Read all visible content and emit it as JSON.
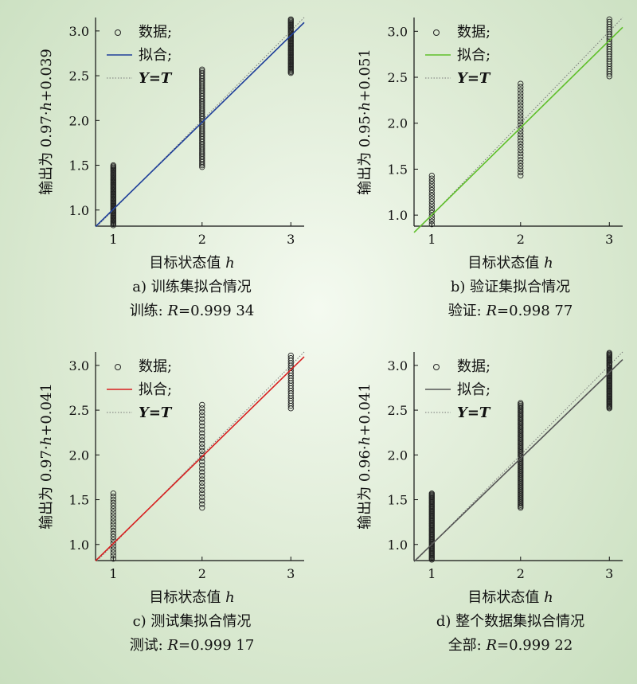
{
  "chart_data": [
    {
      "id": "a",
      "type": "scatter",
      "xlabel": "目标状态值 h",
      "ylabel": "输出为 0.97·h+0.039",
      "caption": "a) 训练集拟合情况",
      "r_text": "训练: R=0.999 34",
      "xlim": [
        0.8,
        3.15
      ],
      "ylim": [
        0.82,
        3.15
      ],
      "xticks": [
        1,
        2,
        3
      ],
      "yticks": [
        1.0,
        1.5,
        2.0,
        2.5,
        3.0
      ],
      "ytick_labels": [
        "1.0",
        "1.5",
        "2.0",
        "2.5",
        "3.0"
      ],
      "fit": {
        "slope": 0.97,
        "intercept": 0.039,
        "color": "#1f3f9a"
      },
      "legend": {
        "data": "数据;",
        "fit": "拟合;",
        "identity": "Y=T",
        "position": "top-left"
      },
      "groups": [
        {
          "x": 1,
          "min": 0.83,
          "max": 1.5,
          "count": 56
        },
        {
          "x": 2,
          "min": 1.48,
          "max": 2.57,
          "count": 60
        },
        {
          "x": 3,
          "min": 2.53,
          "max": 3.13,
          "count": 50
        }
      ]
    },
    {
      "id": "b",
      "type": "scatter",
      "xlabel": "目标状态值 h",
      "ylabel": "输出为 0.95·h+0.051",
      "caption": "b) 验证集拟合情况",
      "r_text": "验证: R=0.998 77",
      "xlim": [
        0.8,
        3.15
      ],
      "ylim": [
        0.88,
        3.15
      ],
      "xticks": [
        1,
        2,
        3
      ],
      "yticks": [
        1.0,
        1.5,
        2.0,
        2.5,
        3.0
      ],
      "ytick_labels": [
        "1.0",
        "1.5",
        "2.0",
        "2.5",
        "3.0"
      ],
      "fit": {
        "slope": 0.95,
        "intercept": 0.051,
        "color": "#5fbf2a"
      },
      "legend": {
        "data": "数据;",
        "fit": "拟合;",
        "identity": "Y=T",
        "position": "top-left"
      },
      "groups": [
        {
          "x": 1,
          "min": 0.9,
          "max": 1.43,
          "count": 18
        },
        {
          "x": 2,
          "min": 1.43,
          "max": 2.43,
          "count": 30
        },
        {
          "x": 3,
          "min": 2.51,
          "max": 3.13,
          "count": 24
        }
      ]
    },
    {
      "id": "c",
      "type": "scatter",
      "xlabel": "目标状态值 h",
      "ylabel": "输出为 0.97·h+0.041",
      "caption": "c) 测试集拟合情况",
      "r_text": "测试: R=0.999 17",
      "xlim": [
        0.8,
        3.15
      ],
      "ylim": [
        0.82,
        3.15
      ],
      "xticks": [
        1,
        2,
        3
      ],
      "yticks": [
        1.0,
        1.5,
        2.0,
        2.5,
        3.0
      ],
      "ytick_labels": [
        "1.0",
        "1.5",
        "2.0",
        "2.5",
        "3.0"
      ],
      "fit": {
        "slope": 0.97,
        "intercept": 0.041,
        "color": "#d81f1f"
      },
      "legend": {
        "data": "数据;",
        "fit": "拟合;",
        "identity": "Y=T",
        "position": "top-left"
      },
      "groups": [
        {
          "x": 1,
          "min": 0.84,
          "max": 1.57,
          "count": 22
        },
        {
          "x": 2,
          "min": 1.41,
          "max": 2.56,
          "count": 30
        },
        {
          "x": 3,
          "min": 2.52,
          "max": 3.11,
          "count": 22
        }
      ]
    },
    {
      "id": "d",
      "type": "scatter",
      "xlabel": "目标状态值 h",
      "ylabel": "输出为 0.96·h+0.041",
      "caption": "d) 整个数据集拟合情况",
      "r_text": "全部: R=0.999 22",
      "xlim": [
        0.8,
        3.15
      ],
      "ylim": [
        0.82,
        3.15
      ],
      "xticks": [
        1,
        2,
        3
      ],
      "yticks": [
        1.0,
        1.5,
        2.0,
        2.5,
        3.0
      ],
      "ytick_labels": [
        "1.0",
        "1.5",
        "2.0",
        "2.5",
        "3.0"
      ],
      "fit": {
        "slope": 0.96,
        "intercept": 0.041,
        "color": "#555555"
      },
      "legend": {
        "data": "数据;",
        "fit": "拟合;",
        "identity": "Y=T",
        "position": "top-left"
      },
      "groups": [
        {
          "x": 1,
          "min": 0.83,
          "max": 1.57,
          "count": 70
        },
        {
          "x": 2,
          "min": 1.41,
          "max": 2.58,
          "count": 80
        },
        {
          "x": 3,
          "min": 2.52,
          "max": 3.14,
          "count": 60
        }
      ]
    }
  ]
}
